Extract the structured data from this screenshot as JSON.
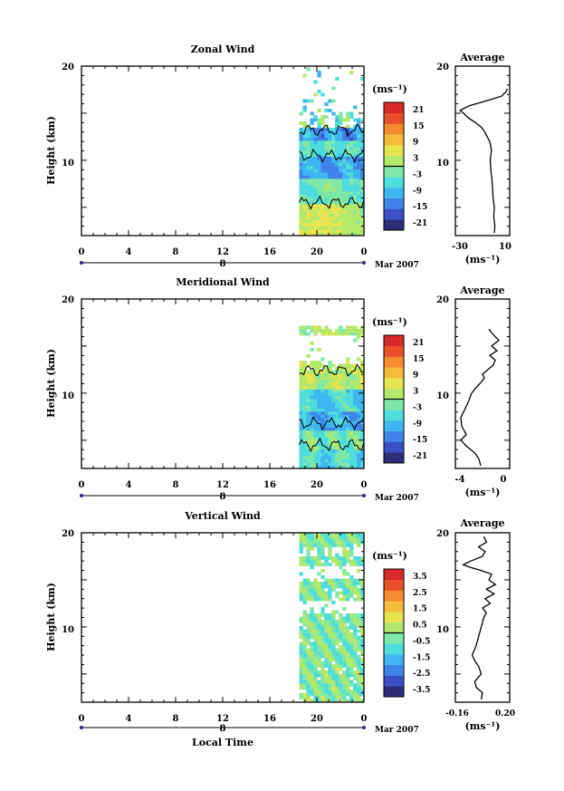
{
  "date_label": "Mar 2007",
  "day_label": "8",
  "x_title": "Local Time",
  "x_ticks": [
    "0",
    "4",
    "8",
    "12",
    "16",
    "20",
    "0"
  ],
  "units": "(ms⁻¹)",
  "chart_data": [
    {
      "type": "heatmap",
      "title": "Zonal Wind",
      "ylabel": "Height (km)",
      "xlabel": "Local Time",
      "x_range_hours": [
        0,
        24
      ],
      "ylim": [
        2,
        20
      ],
      "y_ticks": [
        "10",
        "20"
      ],
      "data_start_hour": 18.5,
      "colorbar": {
        "label": "(ms⁻¹)",
        "ticks": [
          "21",
          "15",
          "9",
          "3",
          "-3",
          "-9",
          "-15",
          "-21"
        ],
        "range": [
          -24,
          24
        ]
      },
      "average": {
        "title": "Average",
        "xlabel": "(ms⁻¹)",
        "x_ticks": [
          "-30",
          "10"
        ],
        "xlim": [
          -34,
          12
        ],
        "ylim": [
          2,
          20
        ],
        "y_ticks": [
          "10",
          "20"
        ],
        "profile": [
          [
            -1,
            2.3
          ],
          [
            -0.5,
            3
          ],
          [
            -1.5,
            4
          ],
          [
            -1,
            5
          ],
          [
            -2,
            6
          ],
          [
            -2.5,
            7
          ],
          [
            -3,
            8
          ],
          [
            -3.5,
            8.5
          ],
          [
            -4,
            9
          ],
          [
            -4.5,
            10
          ],
          [
            -4,
            10.5
          ],
          [
            -3.5,
            11
          ],
          [
            -4,
            11.5
          ],
          [
            -5,
            12
          ],
          [
            -7,
            12.5
          ],
          [
            -9,
            13
          ],
          [
            -12,
            13.5
          ],
          [
            -17,
            14
          ],
          [
            -23,
            14.5
          ],
          [
            -27,
            15
          ],
          [
            -30,
            15.3
          ],
          [
            -22,
            15.8
          ],
          [
            -8,
            16.3
          ],
          [
            5,
            16.8
          ],
          [
            9,
            17.3
          ],
          [
            10,
            17.6
          ]
        ]
      }
    },
    {
      "type": "heatmap",
      "title": "Meridional Wind",
      "ylabel": "Height (km)",
      "xlabel": "Local Time",
      "x_range_hours": [
        0,
        24
      ],
      "ylim": [
        2,
        20
      ],
      "y_ticks": [
        "10",
        "20"
      ],
      "data_start_hour": 18.5,
      "colorbar": {
        "label": "(ms⁻¹)",
        "ticks": [
          "21",
          "15",
          "9",
          "3",
          "-3",
          "-9",
          "-15",
          "-21"
        ],
        "range": [
          -24,
          24
        ]
      },
      "average": {
        "title": "Average",
        "xlabel": "(ms⁻¹)",
        "x_ticks": [
          "-4",
          "0"
        ],
        "xlim": [
          -5.2,
          0.8
        ],
        "ylim": [
          2,
          20
        ],
        "y_ticks": [
          "10",
          "20"
        ],
        "profile": [
          [
            -2.4,
            2.3
          ],
          [
            -2.6,
            3
          ],
          [
            -3,
            3.6
          ],
          [
            -3.5,
            4
          ],
          [
            -4,
            4.4
          ],
          [
            -4.6,
            5
          ],
          [
            -4,
            5.6
          ],
          [
            -4.5,
            6.5
          ],
          [
            -4.6,
            7.4
          ],
          [
            -4.3,
            8
          ],
          [
            -3.8,
            9
          ],
          [
            -3.4,
            10
          ],
          [
            -3,
            10.5
          ],
          [
            -2.5,
            11
          ],
          [
            -2,
            11.6
          ],
          [
            -2.2,
            12
          ],
          [
            -1.6,
            12.5
          ],
          [
            -1,
            13
          ],
          [
            -0.8,
            13.5
          ],
          [
            -1.4,
            14
          ],
          [
            -0.6,
            14.5
          ],
          [
            -1.2,
            15
          ],
          [
            -0.4,
            15.6
          ],
          [
            -1,
            16.2
          ],
          [
            -1.5,
            16.8
          ]
        ]
      }
    },
    {
      "type": "heatmap",
      "title": "Vertical Wind",
      "ylabel": "Height (km)",
      "xlabel": "Local Time",
      "x_range_hours": [
        0,
        24
      ],
      "ylim": [
        2,
        20
      ],
      "y_ticks": [
        "10",
        "20"
      ],
      "data_start_hour": 18.5,
      "colorbar": {
        "label": "(ms⁻¹)",
        "ticks": [
          "3.5",
          "2.5",
          "1.5",
          "0.5",
          "-0.5",
          "-1.5",
          "-2.5",
          "-3.5"
        ],
        "range": [
          -4,
          4
        ]
      },
      "average": {
        "title": "Average",
        "xlabel": "(ms⁻¹)",
        "x_ticks": [
          "-0.16",
          "0.20"
        ],
        "xlim": [
          -0.18,
          0.24
        ],
        "ylim": [
          2,
          20
        ],
        "y_ticks": [
          "10",
          "20"
        ],
        "profile": [
          [
            0.02,
            2.3
          ],
          [
            0.03,
            3
          ],
          [
            -0.02,
            3.6
          ],
          [
            -0.03,
            4.2
          ],
          [
            0.02,
            5
          ],
          [
            0.0,
            5.8
          ],
          [
            -0.03,
            6.4
          ],
          [
            -0.05,
            7
          ],
          [
            -0.02,
            8
          ],
          [
            0.0,
            9
          ],
          [
            0.02,
            10
          ],
          [
            0.04,
            11
          ],
          [
            0.06,
            11.5
          ],
          [
            0.03,
            12
          ],
          [
            0.09,
            12.5
          ],
          [
            0.05,
            13
          ],
          [
            0.12,
            13.5
          ],
          [
            0.06,
            14
          ],
          [
            0.13,
            14.5
          ],
          [
            0.08,
            15
          ],
          [
            0.1,
            15.6
          ],
          [
            0.02,
            16
          ],
          [
            -0.06,
            16.3
          ],
          [
            -0.12,
            16.6
          ],
          [
            -0.06,
            17
          ],
          [
            0.03,
            17.5
          ],
          [
            0.05,
            18
          ],
          [
            0.0,
            18.5
          ],
          [
            0.06,
            19
          ],
          [
            0.04,
            19.6
          ]
        ]
      }
    }
  ]
}
